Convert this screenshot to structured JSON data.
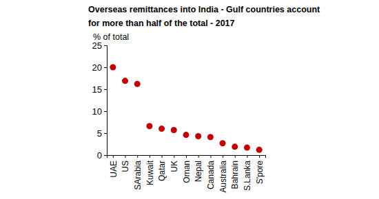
{
  "chart_data": {
    "type": "scatter",
    "title": "Overseas remittances into India - Gulf countries account for more than half of the total - 2017",
    "y_label": "% of total",
    "categories": [
      "UAE",
      "US",
      "SArabia",
      "Kuwait",
      "Qatar",
      "UK",
      "Oman",
      "Nepal",
      "Canada",
      "Australia",
      "Bahrain",
      "S.Lanka",
      "S'pore"
    ],
    "values": [
      20,
      16.9,
      16.2,
      6.6,
      6.0,
      5.7,
      4.6,
      4.3,
      4.1,
      2.7,
      1.9,
      1.7,
      1.2
    ],
    "color": "#c00000",
    "marker": "circle",
    "ylim": [
      0,
      25
    ],
    "yticks": [
      0,
      5,
      10,
      15,
      20,
      25
    ],
    "grid": false
  }
}
